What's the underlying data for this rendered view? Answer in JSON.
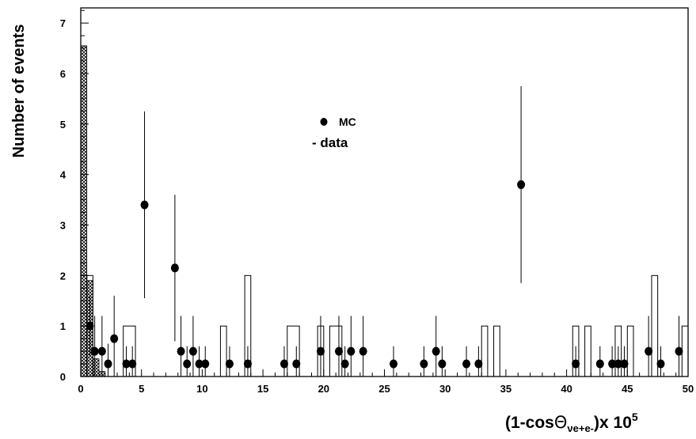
{
  "chart_data": {
    "type": "histogram+scatter",
    "xlabel": {
      "prefix": "(1-cos",
      "theta": "Θ",
      "subscript": "νe+e-",
      "suffix": ")x 10",
      "exponent": "5"
    },
    "ylabel": "Number of events",
    "xlim": [
      0,
      50
    ],
    "ylim": [
      0,
      7.3
    ],
    "xticks": [
      0,
      5,
      10,
      15,
      20,
      25,
      30,
      35,
      40,
      45,
      50
    ],
    "yticks": [
      0,
      1,
      2,
      3,
      4,
      5,
      6,
      7
    ],
    "legend": {
      "mc_label": "MC",
      "data_label": "- data"
    },
    "mc_hatched": [
      {
        "x0": 0.0,
        "x1": 0.5,
        "value": 6.55
      },
      {
        "x0": 0.5,
        "x1": 1.0,
        "value": 1.9
      },
      {
        "x0": 1.0,
        "x1": 1.5,
        "value": 0.35
      },
      {
        "x0": 1.5,
        "x1": 2.0,
        "value": 0.1
      }
    ],
    "data_hist": [
      {
        "x0": 0.0,
        "x1": 0.5,
        "value": 2
      },
      {
        "x0": 0.5,
        "x1": 1.0,
        "value": 2
      },
      {
        "x0": 3.5,
        "x1": 4.5,
        "value": 1
      },
      {
        "x0": 11.5,
        "x1": 12.0,
        "value": 1
      },
      {
        "x0": 13.5,
        "x1": 14.0,
        "value": 2
      },
      {
        "x0": 17.0,
        "x1": 18.0,
        "value": 1
      },
      {
        "x0": 19.5,
        "x1": 20.0,
        "value": 1
      },
      {
        "x0": 20.5,
        "x1": 21.5,
        "value": 1
      },
      {
        "x0": 33.0,
        "x1": 33.5,
        "value": 1
      },
      {
        "x0": 34.0,
        "x1": 34.5,
        "value": 1
      },
      {
        "x0": 40.5,
        "x1": 41.0,
        "value": 1
      },
      {
        "x0": 41.5,
        "x1": 42.0,
        "value": 1
      },
      {
        "x0": 44.0,
        "x1": 44.5,
        "value": 1
      },
      {
        "x0": 45.0,
        "x1": 45.5,
        "value": 1
      },
      {
        "x0": 47.0,
        "x1": 47.5,
        "value": 2
      },
      {
        "x0": 49.5,
        "x1": 50.0,
        "value": 1
      }
    ],
    "mc_points": [
      {
        "x": 0.75,
        "y": 1.0,
        "err": 0.6
      },
      {
        "x": 1.15,
        "y": 0.5,
        "err": 0.7
      },
      {
        "x": 1.75,
        "y": 0.5,
        "err": 0.7
      },
      {
        "x": 2.25,
        "y": 0.25,
        "err": 0.4
      },
      {
        "x": 2.75,
        "y": 0.75,
        "err": 0.85
      },
      {
        "x": 3.75,
        "y": 0.25,
        "err": 0.35
      },
      {
        "x": 4.25,
        "y": 0.25,
        "err": 0.35
      },
      {
        "x": 5.25,
        "y": 3.4,
        "err": 1.85
      },
      {
        "x": 7.75,
        "y": 2.15,
        "err": 1.45
      },
      {
        "x": 8.25,
        "y": 0.5,
        "err": 0.7
      },
      {
        "x": 8.75,
        "y": 0.25,
        "err": 0.35
      },
      {
        "x": 9.25,
        "y": 0.5,
        "err": 0.7
      },
      {
        "x": 9.75,
        "y": 0.25,
        "err": 0.35
      },
      {
        "x": 10.25,
        "y": 0.25,
        "err": 0.35
      },
      {
        "x": 12.25,
        "y": 0.25,
        "err": 0.35
      },
      {
        "x": 13.75,
        "y": 0.25,
        "err": 0.35
      },
      {
        "x": 16.75,
        "y": 0.25,
        "err": 0.35
      },
      {
        "x": 17.75,
        "y": 0.25,
        "err": 0.35
      },
      {
        "x": 19.75,
        "y": 0.5,
        "err": 0.7
      },
      {
        "x": 21.25,
        "y": 0.5,
        "err": 0.7
      },
      {
        "x": 21.75,
        "y": 0.25,
        "err": 0.35
      },
      {
        "x": 22.25,
        "y": 0.5,
        "err": 0.7
      },
      {
        "x": 23.25,
        "y": 0.5,
        "err": 0.7
      },
      {
        "x": 25.75,
        "y": 0.25,
        "err": 0.35
      },
      {
        "x": 28.25,
        "y": 0.25,
        "err": 0.35
      },
      {
        "x": 29.25,
        "y": 0.5,
        "err": 0.7
      },
      {
        "x": 29.75,
        "y": 0.25,
        "err": 0.35
      },
      {
        "x": 31.75,
        "y": 0.25,
        "err": 0.35
      },
      {
        "x": 32.75,
        "y": 0.25,
        "err": 0.35
      },
      {
        "x": 36.25,
        "y": 3.8,
        "err": 1.95
      },
      {
        "x": 40.75,
        "y": 0.25,
        "err": 0.35
      },
      {
        "x": 42.75,
        "y": 0.25,
        "err": 0.35
      },
      {
        "x": 43.75,
        "y": 0.25,
        "err": 0.35
      },
      {
        "x": 44.25,
        "y": 0.25,
        "err": 0.35
      },
      {
        "x": 44.75,
        "y": 0.25,
        "err": 0.35
      },
      {
        "x": 46.75,
        "y": 0.5,
        "err": 0.7
      },
      {
        "x": 47.75,
        "y": 0.25,
        "err": 0.35
      },
      {
        "x": 49.25,
        "y": 0.5,
        "err": 0.7
      }
    ],
    "colors": {
      "axis": "#000000",
      "hatch": "#000000",
      "marker": "#000000"
    },
    "grid": false
  }
}
